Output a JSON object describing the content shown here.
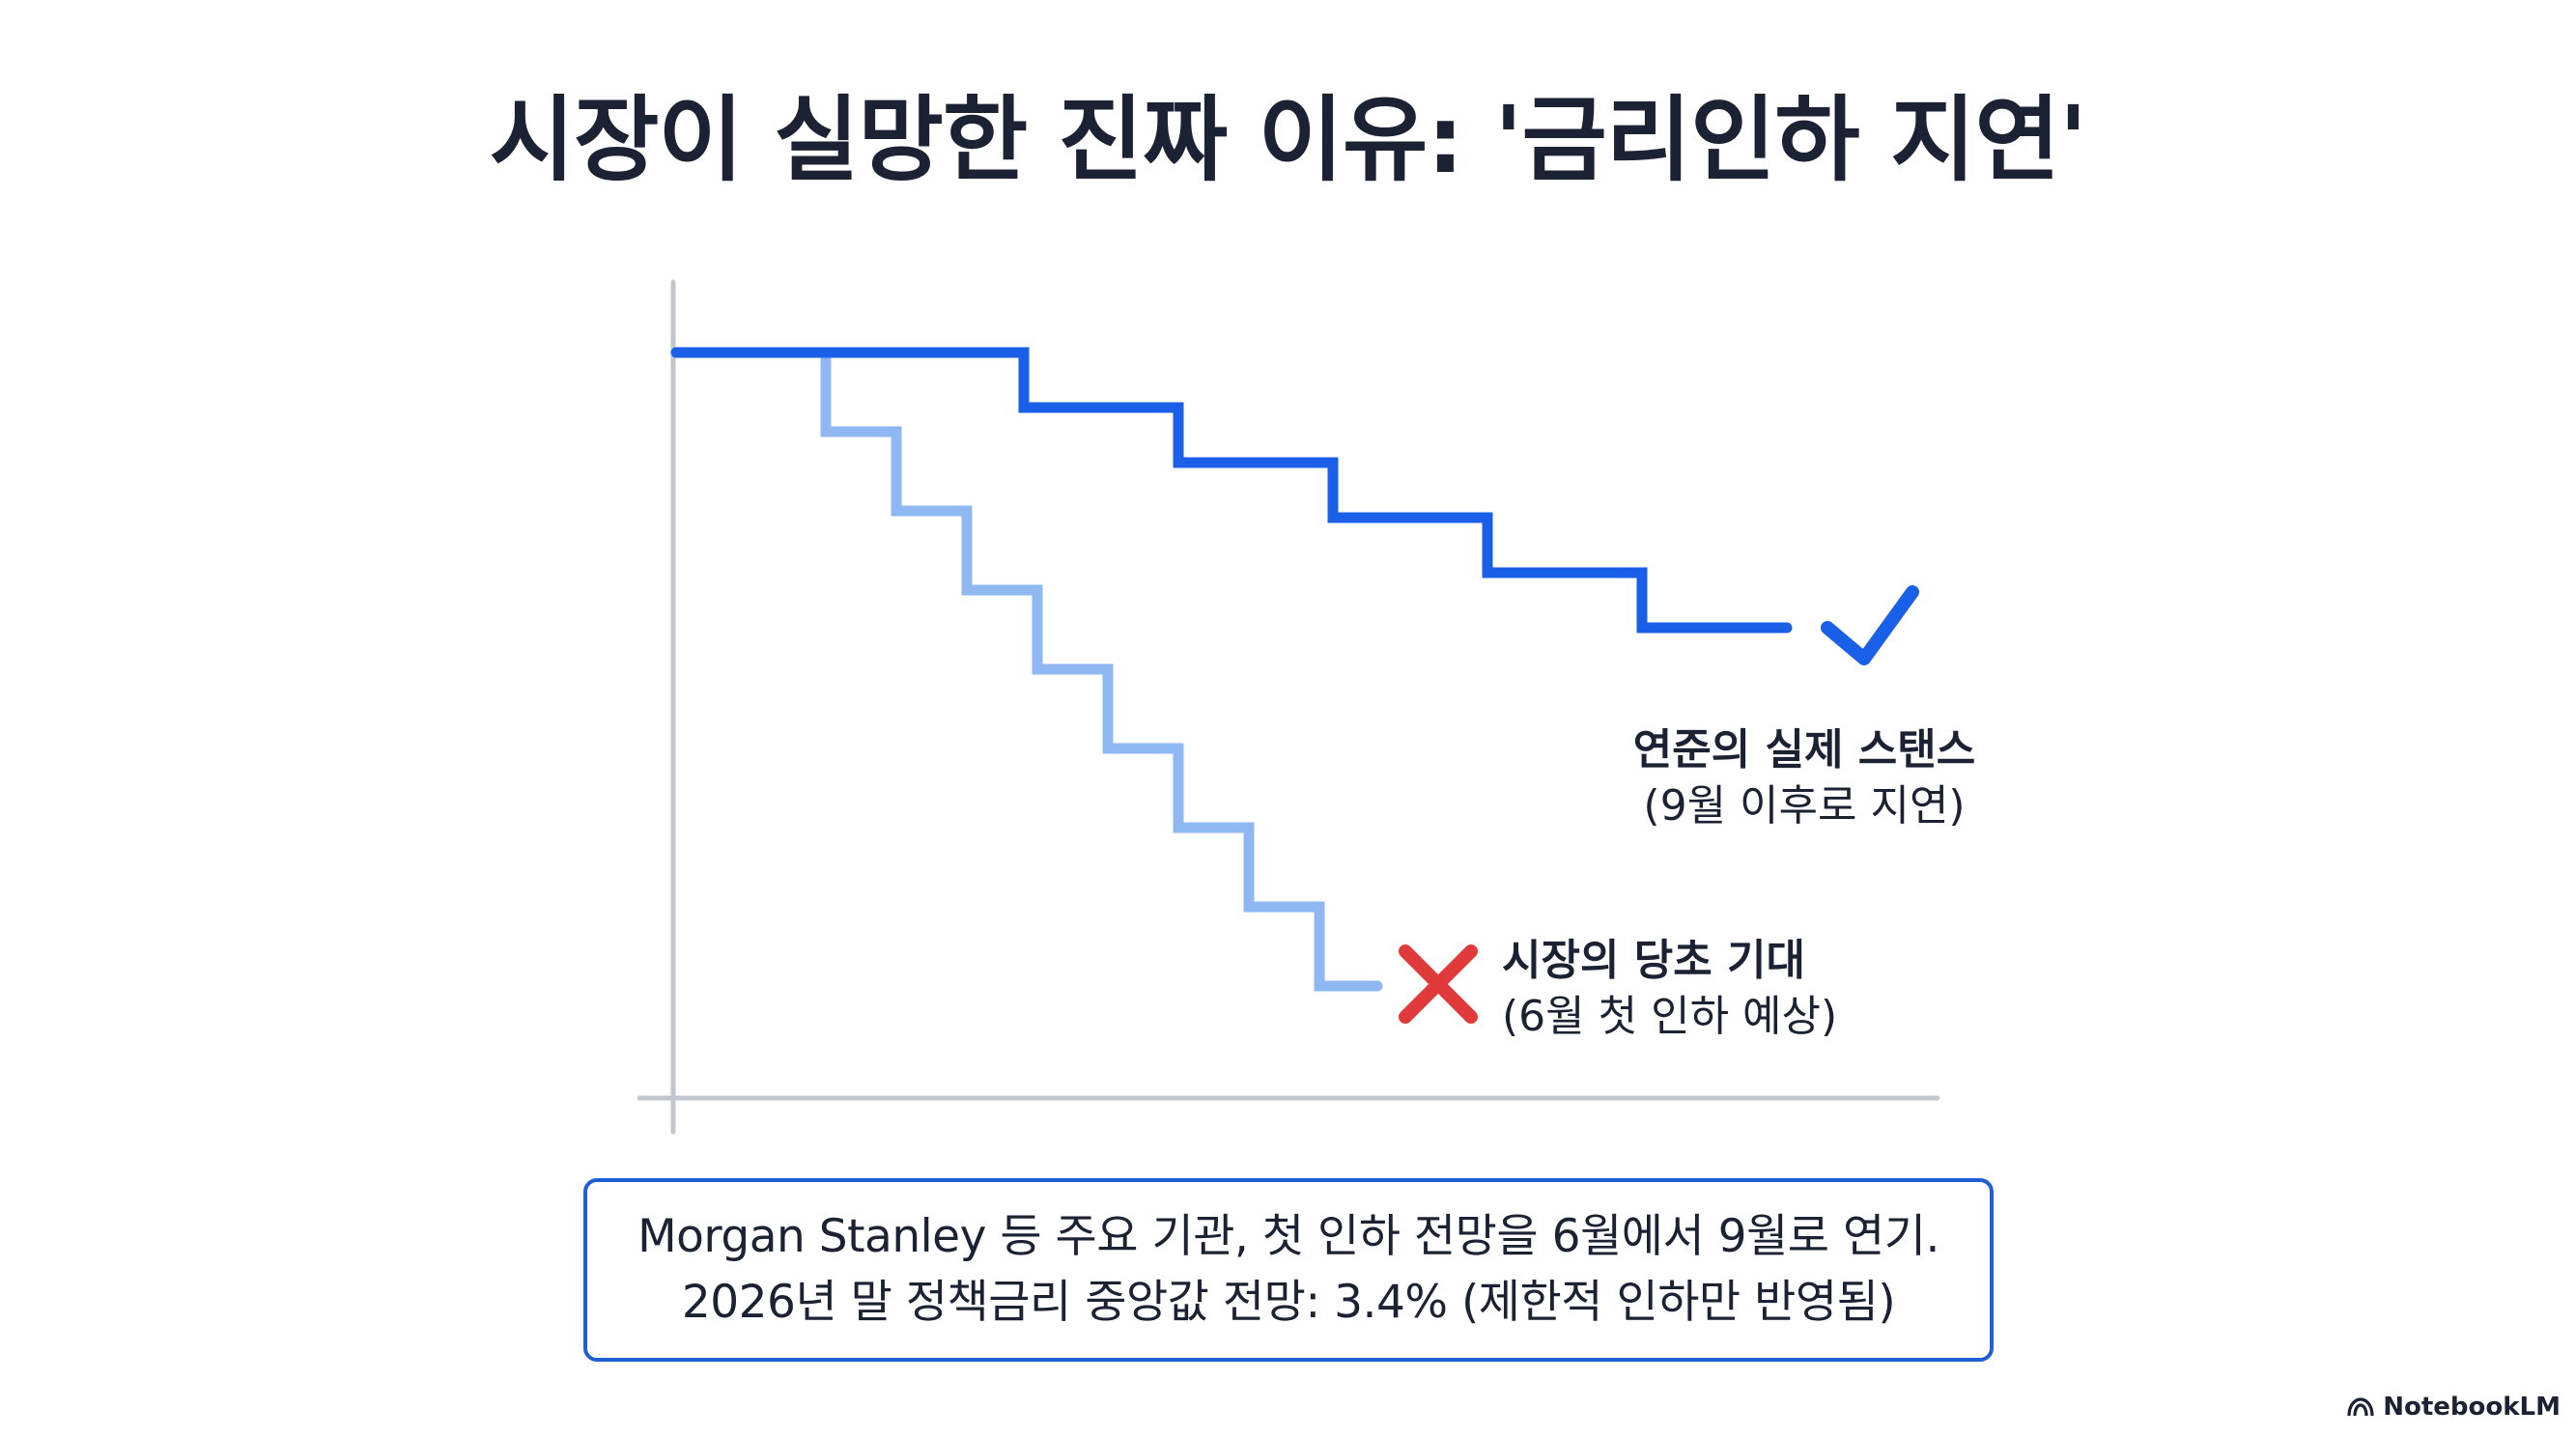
{
  "title": "시장이 실망한 진짜 이유: '금리인하 지연'",
  "chart_data": {
    "type": "line",
    "series": [
      {
        "name": "연준의 실제 스탠스",
        "subtitle": "(9월 이후로 지연)",
        "color": "#1a5fe8",
        "steps": [
          0,
          0,
          0,
          1,
          2,
          3,
          4,
          5
        ],
        "end_marker": "check-icon"
      },
      {
        "name": "시장의 당초 기대",
        "subtitle": "(6월 첫 인하 예상)",
        "color": "#8fb8f2",
        "steps": [
          0,
          0,
          1,
          2,
          3,
          4,
          5,
          6,
          7,
          8
        ],
        "end_marker": "cross-icon"
      }
    ],
    "axis_color": "#c2c6cf",
    "cross_color": "#e03a3a",
    "xlabel": "",
    "ylabel": "",
    "grid": false,
    "legend": "inline-labels"
  },
  "note": {
    "line1": "Morgan Stanley 등 주요 기관, 첫 인하 전망을 6월에서 9월로 연기.",
    "line2": "2026년 말 정책금리 중앙값 전망: 3.4% (제한적 인하만 반영됨)"
  },
  "brand": {
    "name": "NotebookLM",
    "icon": "notebooklm-logo-icon"
  }
}
